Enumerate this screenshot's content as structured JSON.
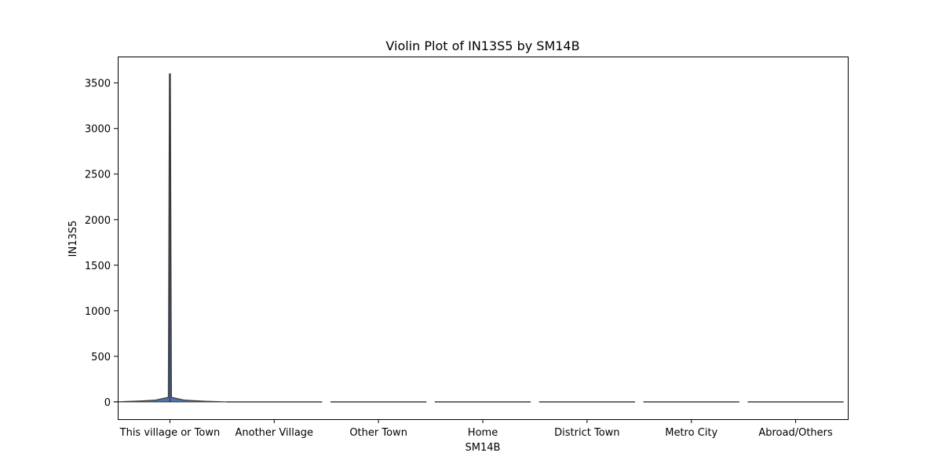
{
  "chart_data": {
    "type": "violin",
    "title": "Violin Plot of IN13S5 by SM14B",
    "xlabel": "SM14B",
    "ylabel": "IN13S5",
    "categories": [
      "This village or Town",
      "Another Village",
      "Other Town",
      "Home",
      "District Town",
      "Metro City",
      "Abroad/Others"
    ],
    "yticks": [
      0,
      500,
      1000,
      1500,
      2000,
      2500,
      3000,
      3500
    ],
    "ylim": [
      -190,
      3790
    ],
    "violins": [
      {
        "category": "This village or Town",
        "min": 0,
        "max": 3600,
        "q1": 0,
        "median": 0,
        "q3": 10,
        "mode": 20
      },
      {
        "category": "Another Village",
        "min": 0,
        "max": 0,
        "q1": 0,
        "median": 0,
        "q3": 0,
        "mode": 0
      },
      {
        "category": "Other Town",
        "min": 0,
        "max": 0,
        "q1": 0,
        "median": 0,
        "q3": 0,
        "mode": 0
      },
      {
        "category": "Home",
        "min": 0,
        "max": 0,
        "q1": 0,
        "median": 0,
        "q3": 0,
        "mode": 0
      },
      {
        "category": "District Town",
        "min": 0,
        "max": 0,
        "q1": 0,
        "median": 0,
        "q3": 0,
        "mode": 0
      },
      {
        "category": "Metro City",
        "min": 0,
        "max": 0,
        "q1": 0,
        "median": 0,
        "q3": 0,
        "mode": 0
      },
      {
        "category": "Abroad/Others",
        "min": 0,
        "max": 0,
        "q1": 0,
        "median": 0,
        "q3": 0,
        "mode": 0
      }
    ],
    "grid": false,
    "legend": "none"
  },
  "colors": {
    "violin_fill": "#4c72b0",
    "line": "#3d3d3d",
    "axis": "#000000"
  }
}
